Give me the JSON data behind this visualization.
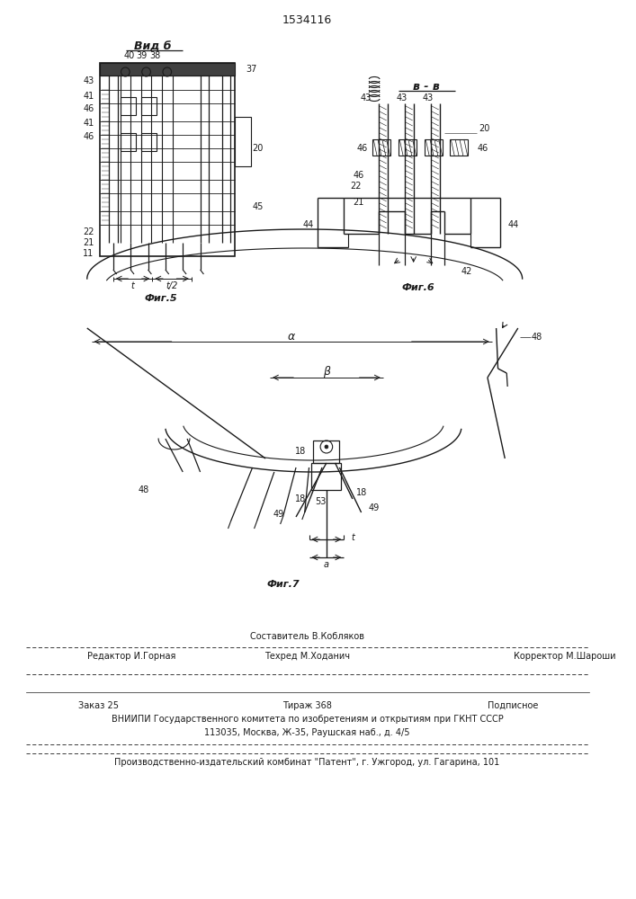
{
  "patent_number": "1534116",
  "bg_color": "#ffffff",
  "line_color": "#1a1a1a",
  "fig5_label": "Фиг.5",
  "fig6_label": "Фиг.6",
  "fig7_label": "Фиг.7",
  "vid_b_label": "Вид б",
  "b_b_label": "в - в",
  "footer_sestavitel": "Составитель В.Кобляков",
  "footer_redaktor": "Редактор И.Горная",
  "footer_tehred": "Техред М.Ходанич",
  "footer_korrektor": "Корректор М.Шароши",
  "footer_zakaz": "Заказ 25",
  "footer_tirazh": "Тираж 368",
  "footer_podpisnoe": "Подписное",
  "footer_vniip": "ВНИИПИ Государственного комитета по изобретениям и открытиям при ГКНТ СССР",
  "footer_addr": "113035, Москва, Ж-35, Раушская наб., д. 4/5",
  "footer_proizv": "Производственно-издательский комбинат \"Патент\", г. Ужгород, ул. Гагарина, 101"
}
